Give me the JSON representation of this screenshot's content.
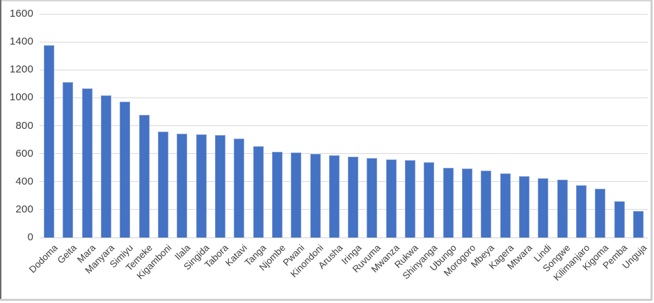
{
  "chart_data": {
    "type": "bar",
    "title": "",
    "xlabel": "",
    "ylabel": "",
    "categories": [
      "Dodoma",
      "Geita",
      "Mara",
      "Manyara",
      "Simiyu",
      "Temeke",
      "Kigamboni",
      "Ilala",
      "Singida",
      "Tabora",
      "Katavi",
      "Tanga",
      "Njombe",
      "Pwani",
      "Kinondoni",
      "Arusha",
      "Iringa",
      "Ruvuma",
      "Mwanza",
      "Rukwa",
      "Shinyanga",
      "Ubungo",
      "Morogoro",
      "Mbeya",
      "Kagera",
      "Mtwara",
      "Lindi",
      "Songwe",
      "Kilimanjaro",
      "Kigoma",
      "Pemba",
      "Unguja"
    ],
    "values": [
      1375,
      1110,
      1065,
      1015,
      970,
      875,
      760,
      745,
      740,
      735,
      710,
      655,
      615,
      610,
      600,
      590,
      580,
      570,
      560,
      555,
      540,
      500,
      495,
      480,
      460,
      440,
      425,
      415,
      375,
      350,
      260,
      190
    ],
    "ylim": [
      0,
      1600
    ],
    "yticks": [
      0,
      200,
      400,
      600,
      800,
      1000,
      1200,
      1400,
      1600
    ],
    "grid": true,
    "legend": false,
    "bar_color": "#4472C4",
    "bar_border_color": "#7D9BD6",
    "gridline_color": "#D9D9D9",
    "axis_line_color": "#D2D2D2",
    "label_color": "#3D3D3D",
    "background": "#FFFFFF"
  }
}
